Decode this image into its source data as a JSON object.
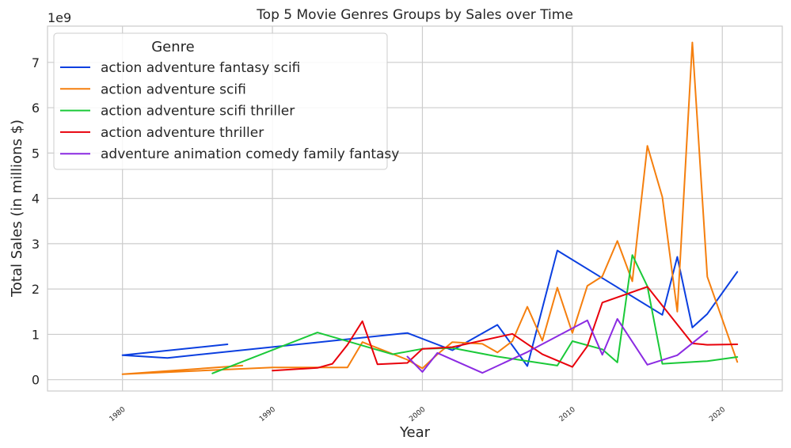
{
  "chart_data": {
    "type": "line",
    "title": "Top 5 Movie Genres Groups by Sales over Time",
    "xlabel": "Year",
    "ylabel": "Total Sales (in millions $)",
    "y_offset_label": "1e9",
    "xlim": [
      1975,
      2024
    ],
    "ylim": [
      -250000000,
      7800000000
    ],
    "x_ticks": [
      1980,
      1990,
      2000,
      2010,
      2020
    ],
    "y_ticks": [
      0,
      1,
      2,
      3,
      4,
      5,
      6,
      7
    ],
    "grid": true,
    "legend": {
      "title": "Genre",
      "placement": "top-left"
    },
    "series": [
      {
        "name": "action adventure fantasy scifi",
        "color": "#0b3fe0",
        "points": [
          [
            1987,
            780000000
          ],
          [
            1980,
            540000000
          ],
          [
            1983,
            480000000
          ],
          [
            1999,
            1030000000
          ],
          [
            2002,
            650000000
          ],
          [
            2005,
            1210000000
          ],
          [
            2007,
            300000000
          ],
          [
            2009,
            2850000000
          ],
          [
            2016,
            1430000000
          ],
          [
            2017,
            2710000000
          ],
          [
            2018,
            1150000000
          ],
          [
            2019,
            1450000000
          ],
          [
            2021,
            2380000000
          ]
        ]
      },
      {
        "name": "action adventure scifi",
        "color": "#f57f0e",
        "points": [
          [
            1988,
            310000000
          ],
          [
            1980,
            120000000
          ],
          [
            1990,
            270000000
          ],
          [
            1993,
            270000000
          ],
          [
            1995,
            270000000
          ],
          [
            1996,
            830000000
          ],
          [
            1999,
            440000000
          ],
          [
            2000,
            250000000
          ],
          [
            2001,
            560000000
          ],
          [
            2002,
            830000000
          ],
          [
            2004,
            790000000
          ],
          [
            2005,
            600000000
          ],
          [
            2006,
            850000000
          ],
          [
            2007,
            1610000000
          ],
          [
            2008,
            860000000
          ],
          [
            2009,
            2030000000
          ],
          [
            2010,
            1030000000
          ],
          [
            2011,
            2070000000
          ],
          [
            2012,
            2280000000
          ],
          [
            2013,
            3060000000
          ],
          [
            2014,
            2170000000
          ],
          [
            2015,
            5160000000
          ],
          [
            2016,
            4030000000
          ],
          [
            2017,
            1500000000
          ],
          [
            2018,
            7440000000
          ],
          [
            2019,
            2270000000
          ],
          [
            2021,
            390000000
          ]
        ]
      },
      {
        "name": "action adventure scifi thriller",
        "color": "#1ac938",
        "points": [
          [
            1986,
            140000000
          ],
          [
            1993,
            1040000000
          ],
          [
            1998,
            560000000
          ],
          [
            2000,
            680000000
          ],
          [
            2002,
            700000000
          ],
          [
            2005,
            510000000
          ],
          [
            2009,
            310000000
          ],
          [
            2010,
            850000000
          ],
          [
            2012,
            670000000
          ],
          [
            2013,
            380000000
          ],
          [
            2014,
            2750000000
          ],
          [
            2015,
            2060000000
          ],
          [
            2016,
            350000000
          ],
          [
            2019,
            410000000
          ],
          [
            2021,
            500000000
          ]
        ]
      },
      {
        "name": "action adventure thriller",
        "color": "#e8000b",
        "points": [
          [
            1990,
            200000000
          ],
          [
            1993,
            260000000
          ],
          [
            1994,
            350000000
          ],
          [
            1995,
            770000000
          ],
          [
            1996,
            1290000000
          ],
          [
            1997,
            340000000
          ],
          [
            1999,
            370000000
          ],
          [
            2000,
            680000000
          ],
          [
            2002,
            720000000
          ],
          [
            2006,
            1010000000
          ],
          [
            2008,
            560000000
          ],
          [
            2010,
            280000000
          ],
          [
            2011,
            740000000
          ],
          [
            2012,
            1700000000
          ],
          [
            2015,
            2050000000
          ],
          [
            2018,
            800000000
          ],
          [
            2019,
            770000000
          ],
          [
            2021,
            780000000
          ]
        ]
      },
      {
        "name": "adventure animation comedy family fantasy",
        "color": "#8b2be2",
        "points": [
          [
            1999,
            510000000
          ],
          [
            2000,
            170000000
          ],
          [
            2001,
            590000000
          ],
          [
            2004,
            150000000
          ],
          [
            2007,
            610000000
          ],
          [
            2011,
            1310000000
          ],
          [
            2012,
            550000000
          ],
          [
            2013,
            1340000000
          ],
          [
            2015,
            330000000
          ],
          [
            2017,
            540000000
          ],
          [
            2019,
            1070000000
          ]
        ]
      }
    ]
  }
}
